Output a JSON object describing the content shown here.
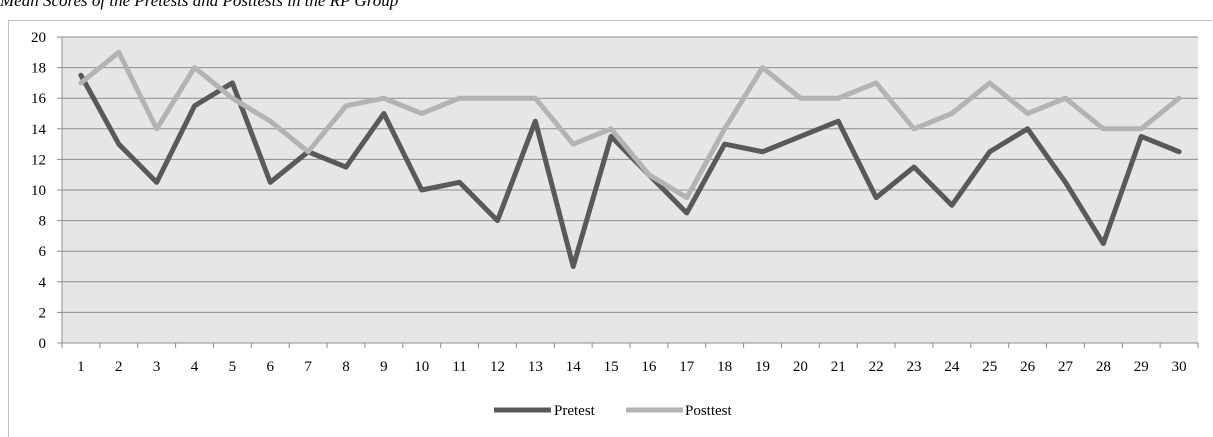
{
  "figure": {
    "title": "Mean Scores of the Pretests and Posttests in the RP Group"
  },
  "chart_data": {
    "type": "line",
    "title": "",
    "xlabel": "",
    "ylabel": "",
    "x": [
      1,
      2,
      3,
      4,
      5,
      6,
      7,
      8,
      9,
      10,
      11,
      12,
      13,
      14,
      15,
      16,
      17,
      18,
      19,
      20,
      21,
      22,
      23,
      24,
      25,
      26,
      27,
      28,
      29,
      30
    ],
    "ylim": [
      0,
      20
    ],
    "yticks": [
      0,
      2,
      4,
      6,
      8,
      10,
      12,
      14,
      16,
      18,
      20
    ],
    "grid": true,
    "legend_position": "bottom",
    "series": [
      {
        "name": "Pretest",
        "color": "#595959",
        "values": [
          17.5,
          13,
          10.5,
          15.5,
          17,
          10.5,
          12.5,
          11.5,
          15,
          10,
          10.5,
          8,
          14.5,
          5,
          13.5,
          11,
          8.5,
          13,
          12.5,
          13.5,
          14.5,
          9.5,
          11.5,
          9,
          12.5,
          14,
          10.5,
          6.5,
          13.5,
          12.5
        ]
      },
      {
        "name": "Posttest",
        "color": "#b3b3b3",
        "values": [
          17,
          19,
          14,
          18,
          16,
          14.5,
          12.5,
          15.5,
          16,
          15,
          16,
          16,
          16,
          13,
          14,
          11,
          9.5,
          14,
          18,
          16,
          16,
          17,
          14,
          15,
          17,
          15,
          16,
          14,
          14,
          16
        ]
      }
    ],
    "plot_background": "#e6e6e6",
    "gridline_color": "#8c8c8c"
  }
}
